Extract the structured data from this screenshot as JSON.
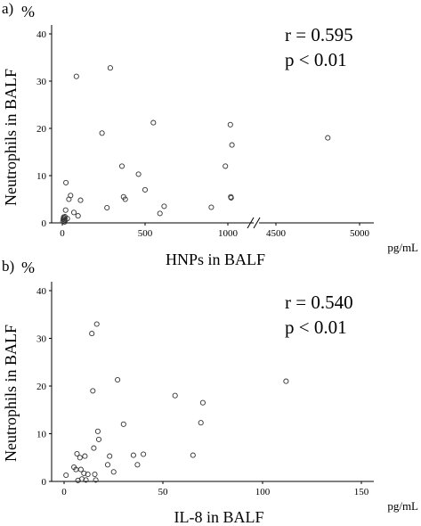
{
  "chart_data": [
    {
      "panel": "a)",
      "type": "scatter",
      "ylabel": "Neutrophils in BALF",
      "y_unit": "%",
      "xlabel": "HNPs in BALF",
      "x_unit": "pg/mL",
      "ylim": [
        0,
        40
      ],
      "yticks": [
        "0",
        "10",
        "20",
        "30",
        "40"
      ],
      "x_axis_break": true,
      "xlim_left": [
        0,
        1000
      ],
      "xlim_right": [
        4500,
        5000
      ],
      "xticks": [
        "0",
        "500",
        "1000",
        "4500",
        "5000"
      ],
      "annotations": [
        "r = 0.595",
        "p < 0.01"
      ],
      "points": [
        {
          "x": 4,
          "y": 0.3
        },
        {
          "x": 6,
          "y": 0.8
        },
        {
          "x": 8,
          "y": 1.2
        },
        {
          "x": 10,
          "y": 0.5
        },
        {
          "x": 12,
          "y": 1.0
        },
        {
          "x": 14,
          "y": 0.2
        },
        {
          "x": 16,
          "y": 1.3
        },
        {
          "x": 18,
          "y": 0.6
        },
        {
          "x": 20,
          "y": 2.7
        },
        {
          "x": 22,
          "y": 8.5
        },
        {
          "x": 30,
          "y": 0.9
        },
        {
          "x": 40,
          "y": 5.0
        },
        {
          "x": 50,
          "y": 5.8
        },
        {
          "x": 70,
          "y": 2.2
        },
        {
          "x": 85,
          "y": 31.0
        },
        {
          "x": 95,
          "y": 1.5
        },
        {
          "x": 110,
          "y": 4.8
        },
        {
          "x": 240,
          "y": 19.0
        },
        {
          "x": 270,
          "y": 3.2
        },
        {
          "x": 290,
          "y": 32.8
        },
        {
          "x": 360,
          "y": 12.0
        },
        {
          "x": 370,
          "y": 5.5
        },
        {
          "x": 380,
          "y": 5.0
        },
        {
          "x": 460,
          "y": 10.3
        },
        {
          "x": 500,
          "y": 7.0
        },
        {
          "x": 550,
          "y": 21.2
        },
        {
          "x": 590,
          "y": 2.0
        },
        {
          "x": 615,
          "y": 3.5
        },
        {
          "x": 900,
          "y": 3.3
        },
        {
          "x": 985,
          "y": 12.0
        },
        {
          "x": 1015,
          "y": 20.8
        },
        {
          "x": 1018,
          "y": 5.5
        },
        {
          "x": 1020,
          "y": 5.3
        },
        {
          "x": 1025,
          "y": 16.5
        },
        {
          "x": 4810,
          "y": 18.0
        }
      ]
    },
    {
      "panel": "b)",
      "type": "scatter",
      "ylabel": "Neutrophils in BALF",
      "y_unit": "%",
      "xlabel": "IL-8 in BALF",
      "x_unit": "pg/mL",
      "ylim": [
        0,
        40
      ],
      "yticks": [
        "0",
        "10",
        "20",
        "30",
        "40"
      ],
      "xlim": [
        0,
        150
      ],
      "xticks": [
        "0",
        "50",
        "100",
        "150"
      ],
      "annotations": [
        "r = 0.540",
        "p < 0.01"
      ],
      "points": [
        {
          "x": 1,
          "y": 1.3
        },
        {
          "x": 5,
          "y": 3.0
        },
        {
          "x": 6,
          "y": 2.5
        },
        {
          "x": 6.5,
          "y": 5.8
        },
        {
          "x": 7,
          "y": 0.2
        },
        {
          "x": 8,
          "y": 5.0
        },
        {
          "x": 8.5,
          "y": 2.5
        },
        {
          "x": 9,
          "y": 0.5
        },
        {
          "x": 10,
          "y": 1.7
        },
        {
          "x": 10.5,
          "y": 5.3
        },
        {
          "x": 11,
          "y": 0.3
        },
        {
          "x": 12,
          "y": 1.5
        },
        {
          "x": 14,
          "y": 31.0
        },
        {
          "x": 14.5,
          "y": 19.0
        },
        {
          "x": 15,
          "y": 7.0
        },
        {
          "x": 15.5,
          "y": 1.5
        },
        {
          "x": 16,
          "y": 0.3
        },
        {
          "x": 16.5,
          "y": 33.0
        },
        {
          "x": 17,
          "y": 10.5
        },
        {
          "x": 17.5,
          "y": 8.8
        },
        {
          "x": 22,
          "y": 3.5
        },
        {
          "x": 23,
          "y": 5.3
        },
        {
          "x": 25,
          "y": 2.0
        },
        {
          "x": 27,
          "y": 21.3
        },
        {
          "x": 30,
          "y": 12.0
        },
        {
          "x": 35,
          "y": 5.5
        },
        {
          "x": 37,
          "y": 3.5
        },
        {
          "x": 40,
          "y": 5.7
        },
        {
          "x": 56,
          "y": 18.0
        },
        {
          "x": 65,
          "y": 5.5
        },
        {
          "x": 69,
          "y": 12.3
        },
        {
          "x": 70,
          "y": 16.5
        },
        {
          "x": 112,
          "y": 21.0
        }
      ]
    }
  ]
}
